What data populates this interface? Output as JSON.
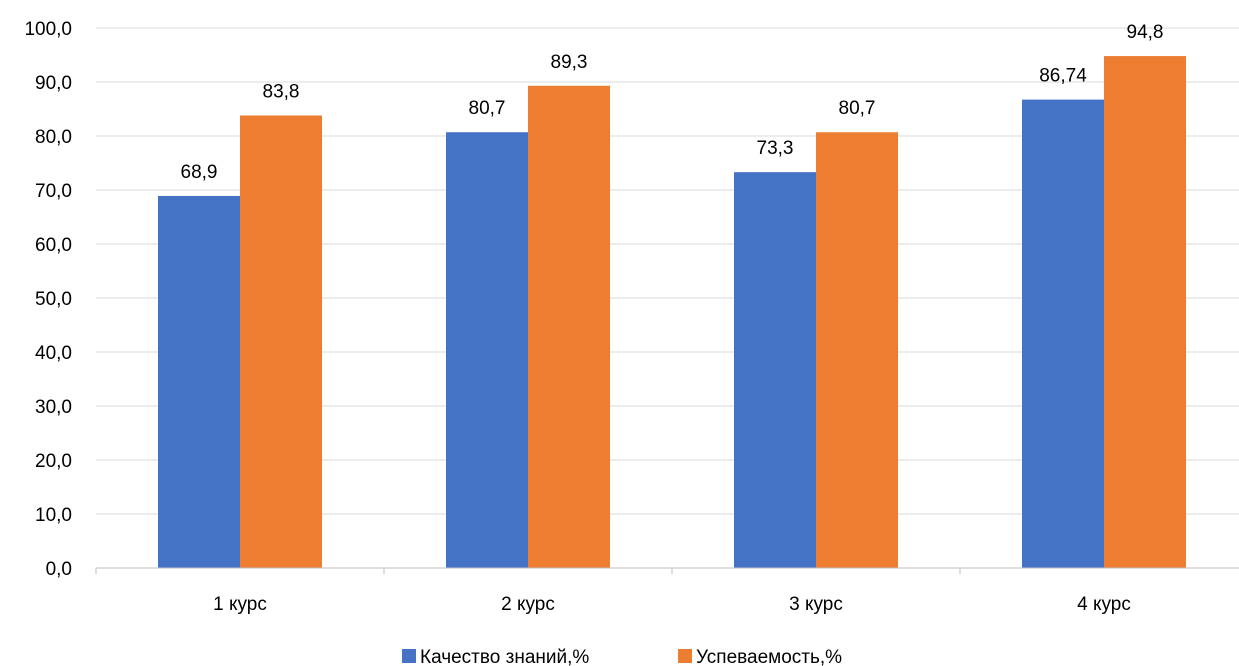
{
  "chart_data": {
    "type": "bar",
    "categories": [
      "1 курс",
      "2 курс",
      "3 курс",
      "4 курс"
    ],
    "series": [
      {
        "name": "Качество знаний,%",
        "color": "#4472C4",
        "values": [
          68.9,
          80.7,
          73.3,
          86.74
        ],
        "labels": [
          "68,9",
          "80,7",
          "73,3",
          "86,74"
        ]
      },
      {
        "name": "Успеваемость,%",
        "color": "#ED7D31",
        "values": [
          83.8,
          89.3,
          80.7,
          94.8
        ],
        "labels": [
          "83,8",
          "89,3",
          "80,7",
          "94,8"
        ]
      }
    ],
    "ylim": [
      0,
      100
    ],
    "yticks": [
      0,
      10,
      20,
      30,
      40,
      50,
      60,
      70,
      80,
      90,
      100
    ],
    "ytick_labels": [
      "0,0",
      "10,0",
      "20,0",
      "30,0",
      "40,0",
      "50,0",
      "60,0",
      "70,0",
      "80,0",
      "90,0",
      "100,0"
    ],
    "grid": true,
    "legend_position": "bottom"
  }
}
